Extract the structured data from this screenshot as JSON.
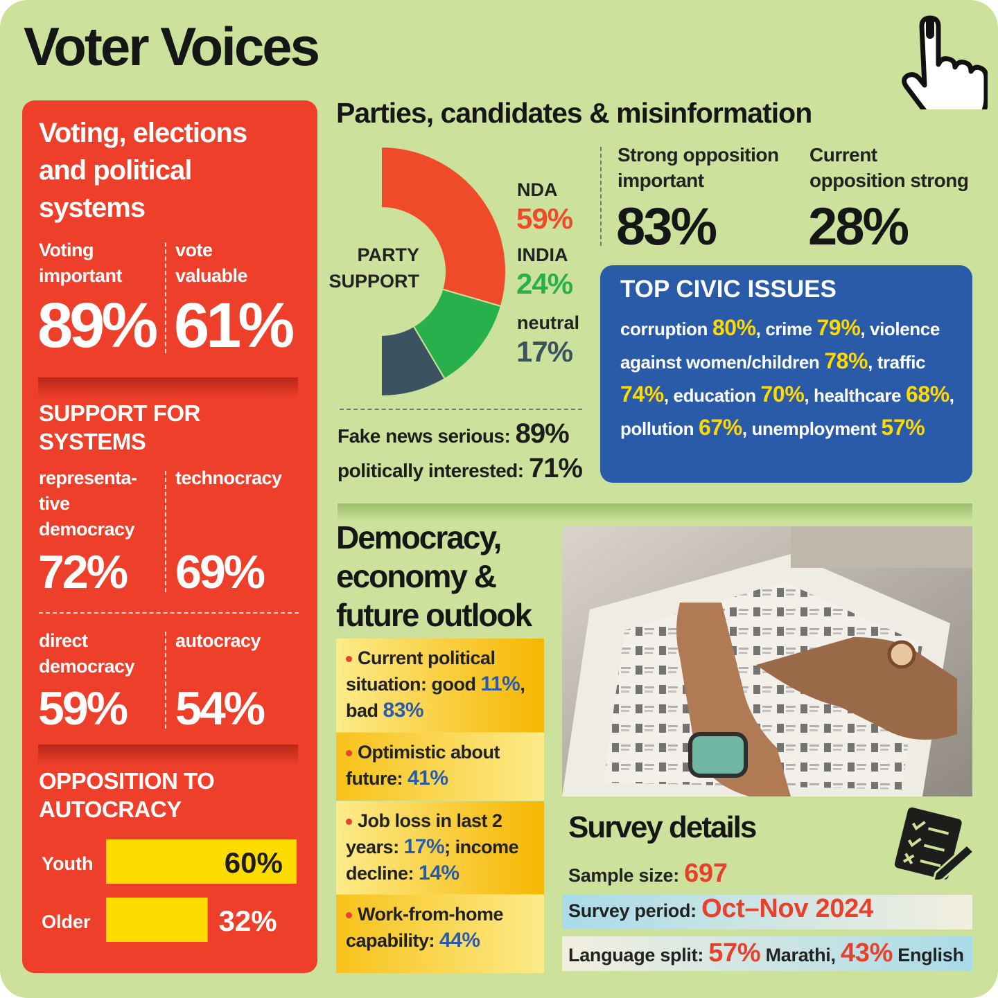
{
  "title": "Voter Voices",
  "left_panel": {
    "heading": "Voting, elections\nand political\nsystems",
    "stats": [
      {
        "label": "Voting\nimportant",
        "value": "89%"
      },
      {
        "label": "vote\nvaluable",
        "value": "61%"
      }
    ],
    "systems_heading": "SUPPORT FOR\nSYSTEMS",
    "systems": [
      {
        "label": "representa-\ntive\ndemocracy",
        "value": "72%"
      },
      {
        "label": "technocracy",
        "value": "69%"
      },
      {
        "label": "direct\ndemocracy",
        "value": "59%"
      },
      {
        "label": "autocracy",
        "value": "54%"
      }
    ],
    "opposition_heading": "OPPOSITION TO\nAUTOCRACY"
  },
  "parties": {
    "heading": "Parties, candidates & misinformation",
    "fake_news": [
      {
        "text": "Fake news serious: "
      },
      {
        "text": "89%",
        "em": true
      }
    ],
    "interested": [
      {
        "text": "politically interested: "
      },
      {
        "text": "71%",
        "em": true
      }
    ],
    "opinions": [
      {
        "label": "Strong opposition\nimportant",
        "value": "83%"
      },
      {
        "label": "Current\nopposition strong",
        "value": "28%"
      }
    ]
  },
  "civic_issues": {
    "heading": "TOP CIVIC ISSUES",
    "text": [
      {
        "text": "corruption "
      },
      {
        "text": "80%",
        "em": true
      },
      {
        "text": ", crime "
      },
      {
        "text": "79%",
        "em": true
      },
      {
        "text": ", violence against women/children "
      },
      {
        "text": "78%",
        "em": true
      },
      {
        "text": ", traffic "
      },
      {
        "text": "74%",
        "em": true
      },
      {
        "text": ", education "
      },
      {
        "text": "70%",
        "em": true
      },
      {
        "text": ", healthcare "
      },
      {
        "text": "68%",
        "em": true
      },
      {
        "text": ", pollution "
      },
      {
        "text": "67%",
        "em": true
      },
      {
        "text": ", unemployment "
      },
      {
        "text": "57%",
        "em": true
      }
    ]
  },
  "democracy": {
    "heading": "Democracy,\neconomy &\nfuture outlook",
    "bullets": [
      [
        {
          "text": "Current political situation: good "
        },
        {
          "text": "11%",
          "em": true
        },
        {
          "text": ", bad "
        },
        {
          "text": "83%",
          "em": true
        }
      ],
      [
        {
          "text": "Optimistic about future: "
        },
        {
          "text": "41%",
          "em": true
        }
      ],
      [
        {
          "text": "Job loss in last 2 years: "
        },
        {
          "text": "17%",
          "em": true
        },
        {
          "text": "; income decline: "
        },
        {
          "text": "14%",
          "em": true
        }
      ],
      [
        {
          "text": "Work-from-home capability: "
        },
        {
          "text": "44%",
          "em": true
        }
      ]
    ]
  },
  "survey": {
    "heading": "Survey details",
    "sample": [
      {
        "text": "Sample size: "
      },
      {
        "text": "697",
        "em": true
      }
    ],
    "period": [
      {
        "text": "Survey period: "
      },
      {
        "text": "Oct–Nov 2024",
        "em": true
      }
    ],
    "language": [
      {
        "text": "Language split: "
      },
      {
        "text": "57%",
        "em": true
      },
      {
        "text": " Marathi, "
      },
      {
        "text": "43%",
        "em": true
      },
      {
        "text": " English"
      }
    ]
  },
  "chart_data": [
    {
      "type": "donut",
      "label": "PARTY\nSUPPORT",
      "categories": [
        "NDA",
        "INDIA",
        "neutral"
      ],
      "values": [
        59,
        24,
        17
      ],
      "value_labels": [
        "59%",
        "24%",
        "17%"
      ],
      "colors": [
        "#ef4a2a",
        "#27b04b",
        "#3b5361"
      ]
    },
    {
      "type": "bar",
      "orientation": "horizontal",
      "categories": [
        "Youth",
        "Older"
      ],
      "values": [
        60,
        32
      ],
      "value_labels": [
        "60%",
        "32%"
      ],
      "color": "#ffdc00"
    }
  ]
}
